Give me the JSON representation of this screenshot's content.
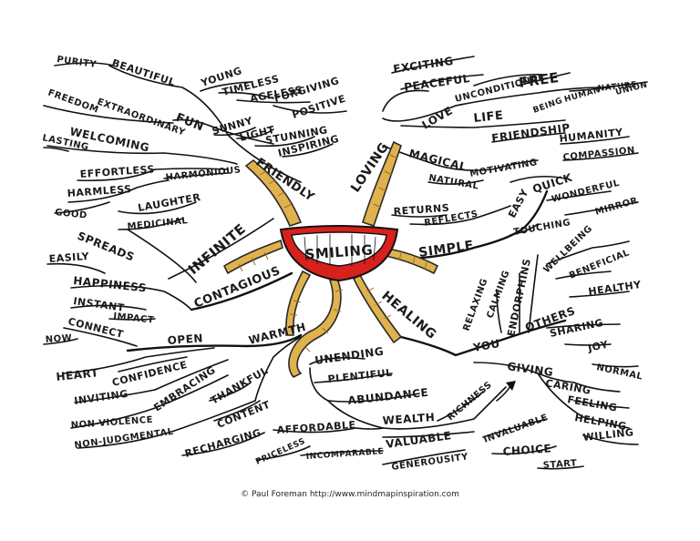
{
  "center": {
    "text": "SMILING"
  },
  "credit": "© Paul Foreman http://www.mindmapinspiration.com",
  "colors": {
    "lips": "#d8201c",
    "teeth": "#ffffff",
    "branch_fill": "#e0b24e",
    "ink": "#111111"
  },
  "words": {
    "purity": "PURITY",
    "beautiful": "BEAUTIFUL",
    "young": "YOUNG",
    "timeless": "TIMELESS",
    "ageless": "AGELESS",
    "forgiving": "FORGIVING",
    "positive": "POSITIVE",
    "fun": "FUN",
    "extraordinary": "EXTRAORDINARY",
    "freedom": "FREEDOM",
    "sunny": "SUNNY",
    "light": "LIGHT",
    "stunning": "STUNNING",
    "inspiring": "INSPIRING",
    "welcoming": "WELCOMING",
    "lasting": "LASTING",
    "friendly": "FRIENDLY",
    "effortless": "EFFORTLESS",
    "harmonious": "HARMONIOUS",
    "harmless": "HARMLESS",
    "laughter": "LAUGHTER",
    "good": "GOOD",
    "medicinal": "MEDICINAL",
    "infinite": "INFINITE",
    "spreads": "SPREADS",
    "easily": "EASILY",
    "happiness": "HAPPINESS",
    "contagious": "CONTAGIOUS",
    "instant": "INSTANT",
    "impact": "IMPACT",
    "connect": "CONNECT",
    "now": "NOW",
    "open": "OPEN",
    "warmth": "WARMTH",
    "heart": "HEART",
    "confidence": "CONFIDENCE",
    "inviting": "INVITING",
    "embracing": "EMBRACING",
    "thankful": "THANKFUL",
    "non_violence": "NON-VIOLENCE",
    "non_judgmental": "NON-JUDGMENTAL",
    "content": "CONTENT",
    "recharging": "RECHARGING",
    "exciting": "EXCITING",
    "peaceful": "PEACEFUL",
    "unconditional": "UNCONDITIONAL",
    "free": "FREE",
    "loving": "LOVING",
    "love": "LOVE",
    "life": "LIFE",
    "being": "BEING",
    "human": "HUMAN",
    "nature": "NATURE",
    "union": "UNION",
    "friendship": "FRIENDSHIP",
    "humanity": "HUMANITY",
    "compassion": "COMPASSION",
    "magical": "MAGICAL",
    "motivating": "MOTIVATING",
    "natural": "NATURAL",
    "easy": "EASY",
    "quick": "QUICK",
    "wonderful": "WONDERFUL",
    "mirror": "MIRROR",
    "returns": "RETURNS",
    "reflects": "REFLECTS",
    "touching": "TOUCHING",
    "simple": "SIMPLE",
    "wellbeing": "WELLBEING",
    "beneficial": "BENEFICIAL",
    "healthy": "HEALTHY",
    "relaxing": "RELAXING",
    "calming": "CALMING",
    "endorphins": "ENDORPHINS",
    "healing": "HEALING",
    "others": "OTHERS",
    "sharing": "SHARING",
    "joy": "JOY",
    "you": "YOU",
    "normal": "NORMAL",
    "giving": "GIVING",
    "caring": "CARING",
    "feeling": "FEELING",
    "helping": "HELPING",
    "willing": "WILLING",
    "unending": "UNENDING",
    "plentiful": "PLENTIFUL",
    "abundance": "ABUNDANCE",
    "wealth": "WEALTH",
    "richness": "RICHNESS",
    "affordable": "AFFORDABLE",
    "valuable": "VALUABLE",
    "invaluable": "INVALUABLE",
    "priceless": "PRICELESS",
    "incomparable": "INCOMPARABLE",
    "choice": "CHOICE",
    "generousity": "GENEROUSITY",
    "start": "START"
  }
}
